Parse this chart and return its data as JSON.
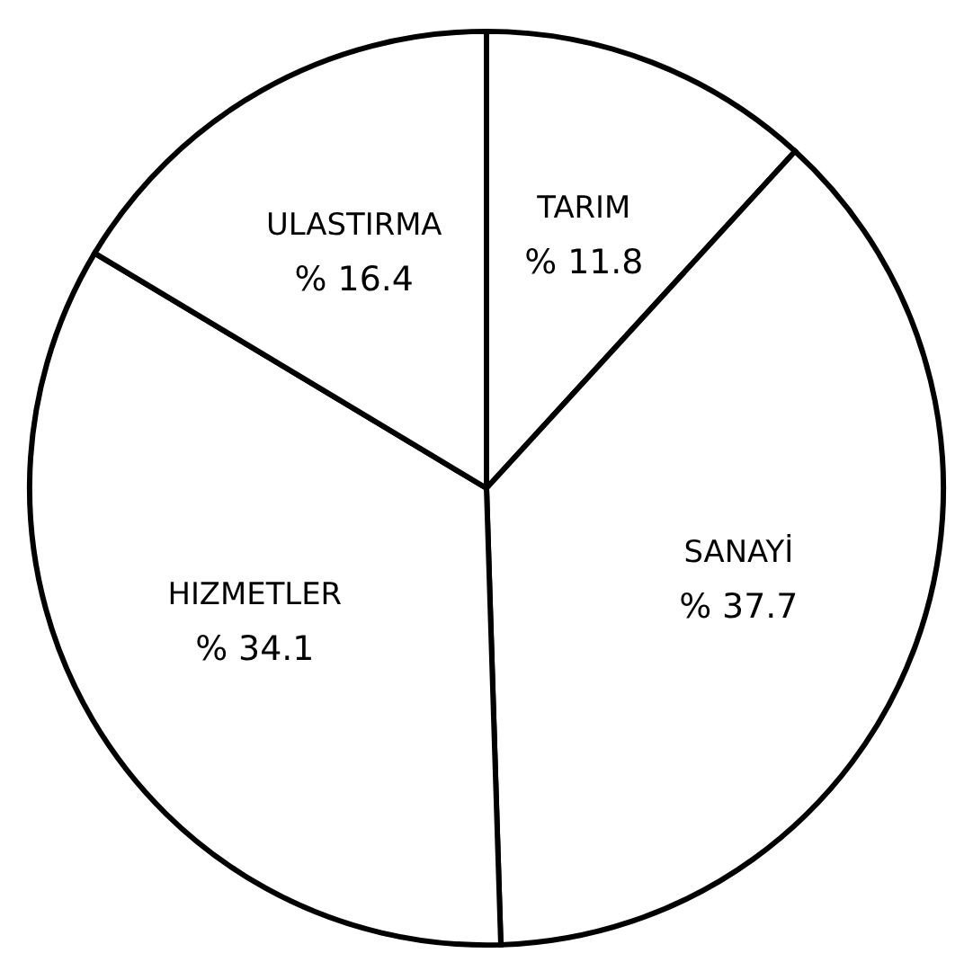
{
  "chart_data": {
    "type": "pie",
    "categories": [
      "TARIM",
      "SANAYİ",
      "HIZMETLER",
      "ULASTIRMA"
    ],
    "values": [
      11.8,
      37.7,
      34.1,
      16.4
    ],
    "value_labels": [
      "% 11.8",
      "% 37.7",
      "% 34.1",
      "% 16.4"
    ],
    "colors": [
      "#ffffff",
      "#ffffff",
      "#ffffff",
      "#ffffff"
    ],
    "legend": false
  }
}
